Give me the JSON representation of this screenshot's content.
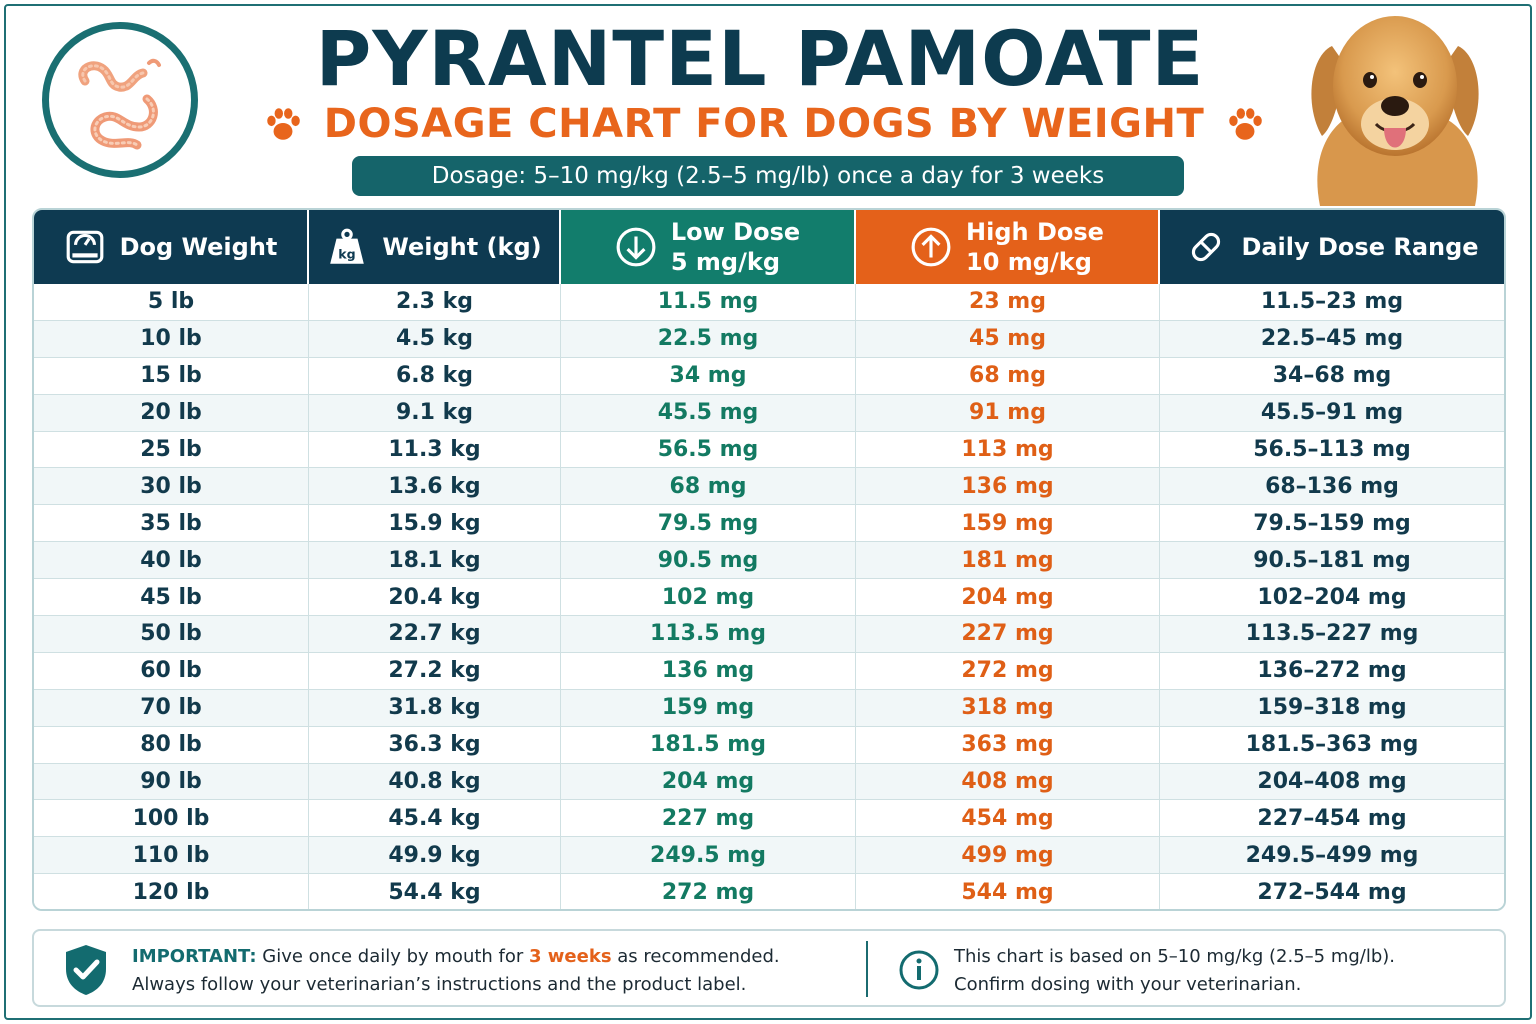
{
  "header": {
    "title": "PYRANTEL PAMOATE",
    "subtitle": "DOSAGE CHART FOR DOGS BY WEIGHT",
    "dosage_banner": "Dosage: 5–10 mg/kg (2.5–5 mg/lb) once a day for 3 weeks",
    "logo_icon": "worm-icon",
    "image": "golden-retriever-dog"
  },
  "table": {
    "headers": {
      "dog_weight": "Dog Weight",
      "weight_kg": "Weight (kg)",
      "low_dose_line1": "Low Dose",
      "low_dose_line2": "5 mg/kg",
      "high_dose_line1": "High Dose",
      "high_dose_line2": "10 mg/kg",
      "daily_range": "Daily Dose Range"
    },
    "rows": [
      [
        "5 lb",
        "2.3 kg",
        "11.5 mg",
        "23 mg",
        "11.5–23 mg"
      ],
      [
        "10 lb",
        "4.5 kg",
        "22.5 mg",
        "45 mg",
        "22.5–45 mg"
      ],
      [
        "15 lb",
        "6.8 kg",
        "34 mg",
        "68 mg",
        "34–68 mg"
      ],
      [
        "20 lb",
        "9.1 kg",
        "45.5 mg",
        "91 mg",
        "45.5–91 mg"
      ],
      [
        "25 lb",
        "11.3 kg",
        "56.5 mg",
        "113 mg",
        "56.5–113 mg"
      ],
      [
        "30 lb",
        "13.6 kg",
        "68 mg",
        "136 mg",
        "68–136 mg"
      ],
      [
        "35 lb",
        "15.9 kg",
        "79.5 mg",
        "159 mg",
        "79.5–159 mg"
      ],
      [
        "40 lb",
        "18.1 kg",
        "90.5 mg",
        "181 mg",
        "90.5–181 mg"
      ],
      [
        "45 lb",
        "20.4 kg",
        "102 mg",
        "204 mg",
        "102–204 mg"
      ],
      [
        "50 lb",
        "22.7 kg",
        "113.5 mg",
        "227 mg",
        "113.5–227 mg"
      ],
      [
        "60 lb",
        "27.2 kg",
        "136 mg",
        "272 mg",
        "136–272 mg"
      ],
      [
        "70 lb",
        "31.8 kg",
        "159 mg",
        "318 mg",
        "159–318 mg"
      ],
      [
        "80 lb",
        "36.3 kg",
        "181.5 mg",
        "363 mg",
        "181.5–363 mg"
      ],
      [
        "90 lb",
        "40.8 kg",
        "204 mg",
        "408 mg",
        "204–408 mg"
      ],
      [
        "100 lb",
        "45.4 kg",
        "227 mg",
        "454 mg",
        "227–454 mg"
      ],
      [
        "110 lb",
        "49.9 kg",
        "249.5 mg",
        "499 mg",
        "249.5–499 mg"
      ],
      [
        "120 lb",
        "54.4 kg",
        "272 mg",
        "544 mg",
        "272–544 mg"
      ]
    ]
  },
  "footer": {
    "important_label": "IMPORTANT:",
    "important_text_a": " Give once daily by mouth for ",
    "important_weeks": "3 weeks",
    "important_text_b": " as recommended.",
    "important_line2": "Always follow your veterinarian’s instructions and the product label.",
    "info_line1": "This chart is based on 5–10 mg/kg (2.5–5 mg/lb).",
    "info_line2": "Confirm dosing with your veterinarian."
  },
  "colors": {
    "navy": "#0e3a51",
    "teal": "#15646a",
    "green": "#127d6c",
    "orange": "#e4611a"
  }
}
